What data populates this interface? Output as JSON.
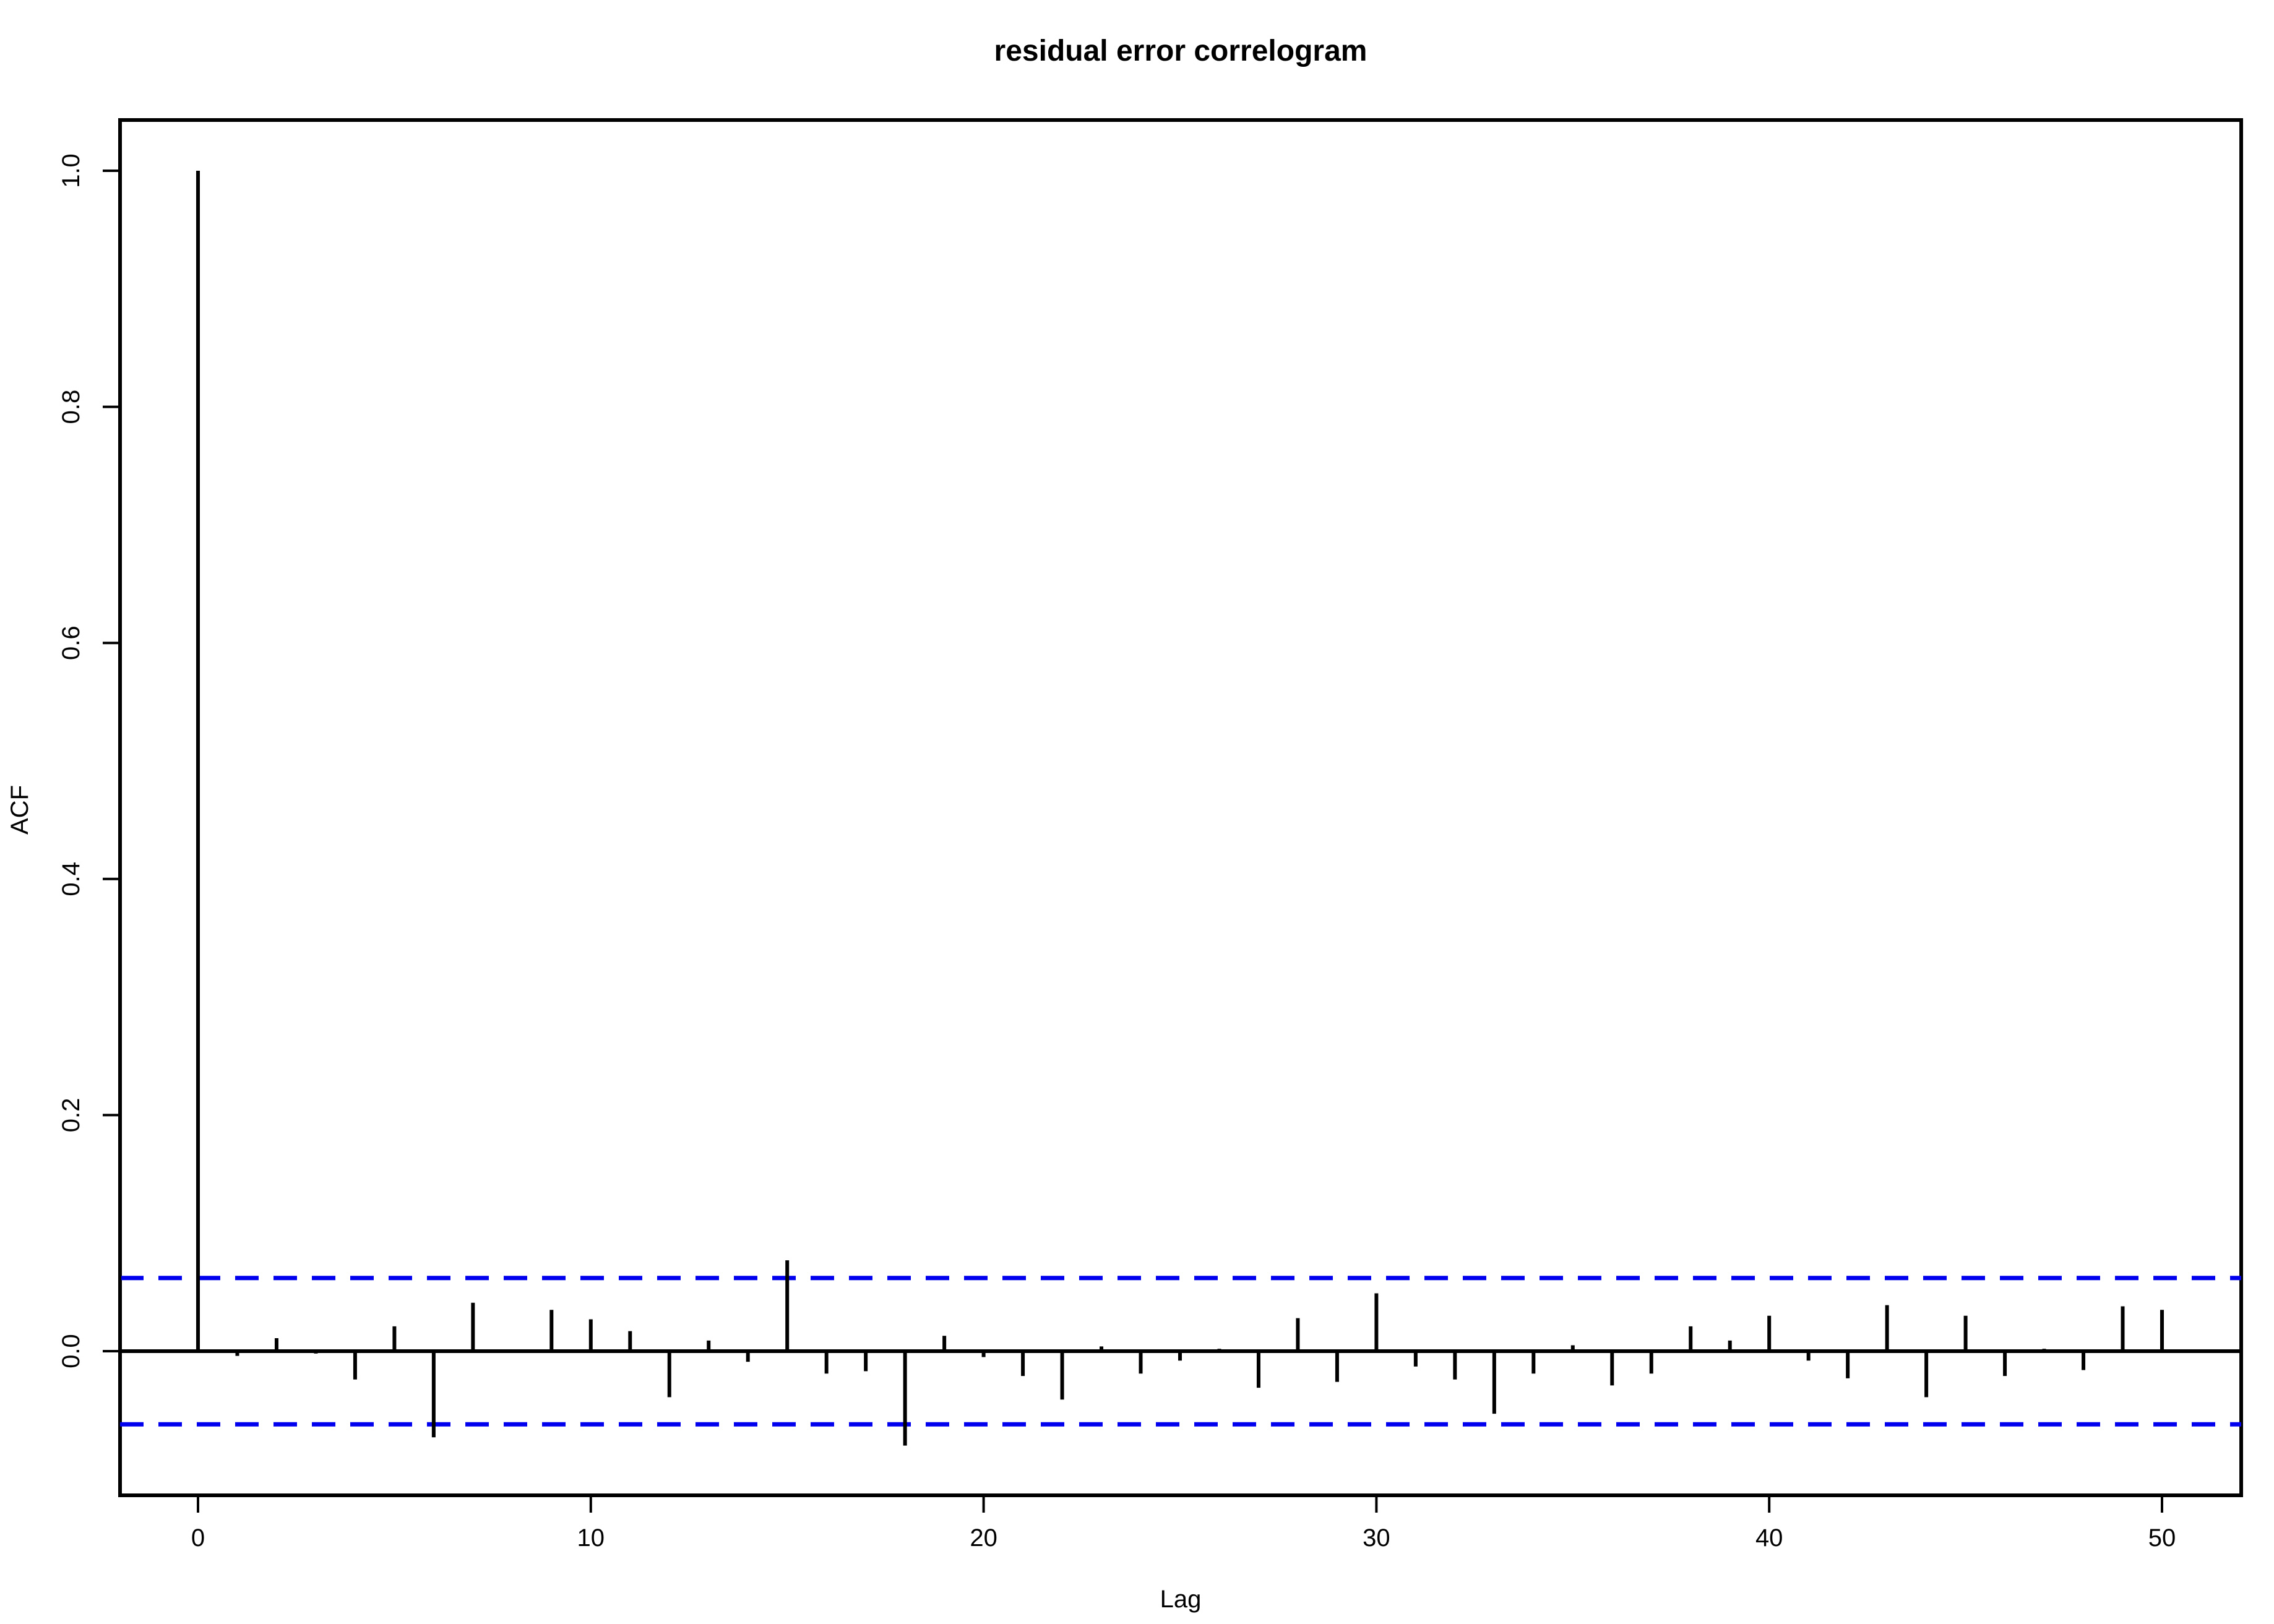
{
  "chart_data": {
    "type": "bar",
    "title": "residual error correlogram",
    "xlabel": "Lag",
    "ylabel": "ACF",
    "xlim": [
      -2,
      52
    ],
    "ylim": [
      -0.12,
      1.05
    ],
    "x_ticks": [
      0,
      10,
      20,
      30,
      40,
      50
    ],
    "x_tick_labels": [
      "0",
      "10",
      "20",
      "30",
      "40",
      "50"
    ],
    "y_ticks": [
      0.0,
      0.2,
      0.4,
      0.6,
      0.8,
      1.0
    ],
    "y_tick_labels": [
      "0.0",
      "0.2",
      "0.4",
      "0.6",
      "0.8",
      "1.0"
    ],
    "confidence_bound": 0.062,
    "bound_color": "#0000ee",
    "bar_color": "#000000",
    "grid": false,
    "legend": "none",
    "lags": [
      0,
      1,
      2,
      3,
      4,
      5,
      6,
      7,
      8,
      9,
      10,
      11,
      12,
      13,
      14,
      15,
      16,
      17,
      18,
      19,
      20,
      21,
      22,
      23,
      24,
      25,
      26,
      27,
      28,
      29,
      30,
      31,
      32,
      33,
      34,
      35,
      36,
      37,
      38,
      39,
      40,
      41,
      42,
      43,
      44,
      45,
      46,
      47,
      48,
      49,
      50
    ],
    "values": [
      1.0,
      -0.004,
      0.011,
      -0.002,
      -0.024,
      0.021,
      -0.073,
      0.041,
      0.001,
      0.035,
      0.027,
      0.017,
      -0.039,
      0.009,
      -0.009,
      0.077,
      -0.019,
      -0.017,
      -0.08,
      0.013,
      -0.005,
      -0.021,
      -0.041,
      0.004,
      -0.019,
      -0.008,
      0.002,
      -0.031,
      0.028,
      -0.026,
      0.049,
      -0.013,
      -0.024,
      -0.053,
      -0.019,
      0.005,
      -0.029,
      -0.019,
      0.021,
      0.009,
      0.03,
      -0.008,
      -0.023,
      0.039,
      -0.039,
      0.03,
      -0.021,
      0.002,
      -0.016,
      0.038,
      0.035
    ]
  }
}
